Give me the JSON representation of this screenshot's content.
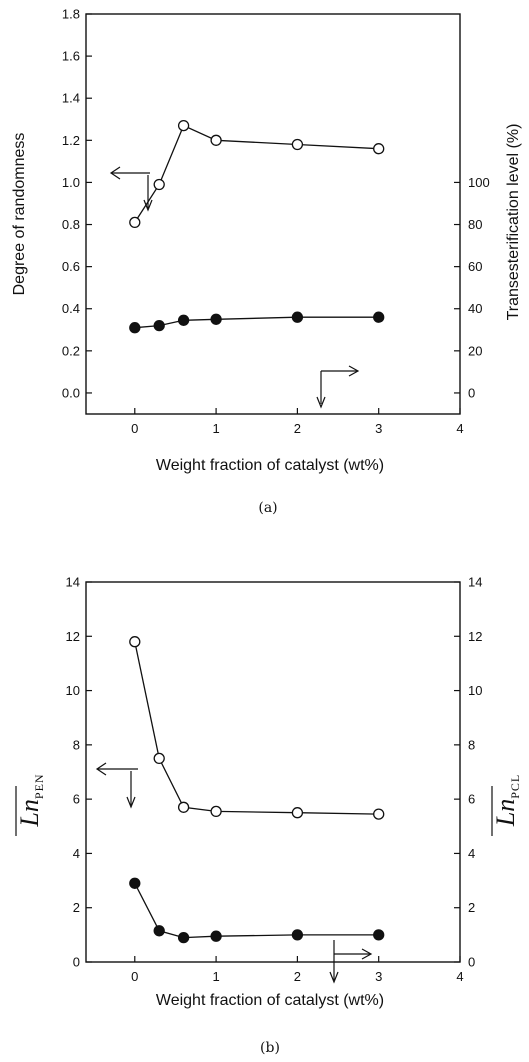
{
  "chart_data": [
    {
      "type": "line",
      "xlabel": "Weight fraction of catalyst (wt%)",
      "ylabel": "Degree of randomness",
      "y2label": "Transesterification level (%)",
      "caption": "(a)",
      "xlim": [
        -0.6,
        4
      ],
      "ylim": [
        -0.1,
        1.8
      ],
      "y2lim": [
        -10,
        180
      ],
      "xticks": [
        "0",
        "1",
        "2",
        "3",
        "4"
      ],
      "xtick_values": [
        0,
        1,
        2,
        3,
        4
      ],
      "yticks": [
        "0.0",
        "0.2",
        "0.4",
        "0.6",
        "0.8",
        "1.0",
        "1.2",
        "1.4",
        "1.6",
        "1.8"
      ],
      "ytick_values": [
        0.0,
        0.2,
        0.4,
        0.6,
        0.8,
        1.0,
        1.2,
        1.4,
        1.6,
        1.8
      ],
      "y2ticks": [
        "0",
        "20",
        "40",
        "60",
        "80",
        "100"
      ],
      "y2tick_values": [
        0,
        20,
        40,
        60,
        80,
        100
      ],
      "series": [
        {
          "marker": "open-circle",
          "axis": "left",
          "x": [
            0,
            0.3,
            0.6,
            1,
            2,
            3
          ],
          "y": [
            0.81,
            0.99,
            1.27,
            1.2,
            1.18,
            1.16
          ]
        },
        {
          "marker": "filled-circle",
          "axis": "right",
          "x": [
            0,
            0.3,
            0.6,
            1,
            2,
            3
          ],
          "y": [
            31,
            32,
            34.5,
            35,
            36,
            36
          ]
        }
      ]
    },
    {
      "type": "line",
      "xlabel": "Weight fraction of catalyst (wt%)",
      "ylabel": "Ln",
      "ylabel_sub": "PEN",
      "y2label": "Ln",
      "y2label_sub": "PCL",
      "caption": "(b)",
      "xlim": [
        -0.6,
        4
      ],
      "ylim": [
        0,
        14
      ],
      "y2lim": [
        0,
        14
      ],
      "xticks": [
        "0",
        "1",
        "2",
        "3",
        "4"
      ],
      "xtick_values": [
        0,
        1,
        2,
        3,
        4
      ],
      "yticks": [
        "0",
        "2",
        "4",
        "6",
        "8",
        "10",
        "12",
        "14"
      ],
      "ytick_values": [
        0,
        2,
        4,
        6,
        8,
        10,
        12,
        14
      ],
      "y2ticks": [
        "0",
        "2",
        "4",
        "6",
        "8",
        "10",
        "12",
        "14"
      ],
      "y2tick_values": [
        0,
        2,
        4,
        6,
        8,
        10,
        12,
        14
      ],
      "series": [
        {
          "marker": "open-circle",
          "axis": "left",
          "x": [
            0,
            0.3,
            0.6,
            1,
            2,
            3
          ],
          "y": [
            11.8,
            7.5,
            5.7,
            5.55,
            5.5,
            5.45
          ]
        },
        {
          "marker": "filled-circle",
          "axis": "right",
          "x": [
            0,
            0.3,
            0.6,
            1,
            2,
            3
          ],
          "y": [
            2.9,
            1.15,
            0.9,
            0.95,
            1.0,
            1.0
          ]
        }
      ]
    }
  ]
}
